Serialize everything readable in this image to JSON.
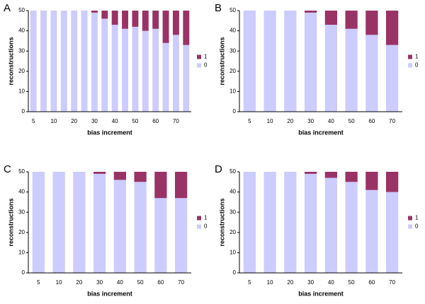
{
  "chart_data": [
    {
      "type": "bar",
      "panel": "A",
      "stacked": true,
      "xlabel": "bias increment",
      "ylabel": "reconstructions",
      "categories": [
        "5",
        null,
        "10",
        null,
        "20",
        null,
        "30",
        null,
        "40",
        null,
        "50",
        null,
        "60",
        null,
        "70",
        null
      ],
      "series": [
        {
          "name": "0",
          "color": "#ccccff",
          "values": [
            50,
            50,
            50,
            50,
            50,
            50,
            49,
            46,
            43,
            41,
            42,
            40,
            41,
            34,
            38,
            33
          ]
        },
        {
          "name": "1",
          "color": "#993366",
          "values": [
            0,
            0,
            0,
            0,
            0,
            0,
            1,
            4,
            7,
            9,
            8,
            10,
            9,
            16,
            12,
            17
          ]
        }
      ],
      "ylim": [
        0,
        50
      ],
      "yticks": [
        0,
        10,
        20,
        30,
        40,
        50
      ],
      "grid": false
    },
    {
      "type": "bar",
      "panel": "B",
      "stacked": true,
      "xlabel": "bias increment",
      "ylabel": "reconstructions",
      "categories": [
        "5",
        "10",
        "20",
        "30",
        "40",
        "50",
        "60",
        "70"
      ],
      "series": [
        {
          "name": "0",
          "color": "#ccccff",
          "values": [
            50,
            50,
            50,
            49,
            43,
            41,
            38,
            33
          ]
        },
        {
          "name": "1",
          "color": "#993366",
          "values": [
            0,
            0,
            0,
            1,
            7,
            9,
            12,
            17
          ]
        }
      ],
      "ylim": [
        0,
        50
      ],
      "yticks": [
        0,
        10,
        20,
        30,
        40,
        50
      ],
      "grid": false
    },
    {
      "type": "bar",
      "panel": "C",
      "stacked": true,
      "xlabel": "bias increment",
      "ylabel": "reconstructions",
      "categories": [
        "5",
        "10",
        "20",
        "30",
        "40",
        "50",
        "60",
        "70"
      ],
      "series": [
        {
          "name": "0",
          "color": "#ccccff",
          "values": [
            50,
            50,
            50,
            49,
            46,
            45,
            37,
            37
          ]
        },
        {
          "name": "1",
          "color": "#993366",
          "values": [
            0,
            0,
            0,
            1,
            4,
            5,
            13,
            13
          ]
        }
      ],
      "ylim": [
        0,
        50
      ],
      "yticks": [
        0,
        10,
        20,
        30,
        40,
        50
      ],
      "grid": false
    },
    {
      "type": "bar",
      "panel": "D",
      "stacked": true,
      "xlabel": "bias increment",
      "ylabel": "reconstructions",
      "categories": [
        "5",
        "10",
        "20",
        "30",
        "40",
        "50",
        "60",
        "70"
      ],
      "series": [
        {
          "name": "0",
          "color": "#ccccff",
          "values": [
            50,
            50,
            50,
            49,
            47,
            45,
            41,
            40
          ]
        },
        {
          "name": "1",
          "color": "#993366",
          "values": [
            0,
            0,
            0,
            1,
            3,
            5,
            9,
            10
          ]
        }
      ],
      "ylim": [
        0,
        50
      ],
      "yticks": [
        0,
        10,
        20,
        30,
        40,
        50
      ],
      "grid": false
    }
  ]
}
